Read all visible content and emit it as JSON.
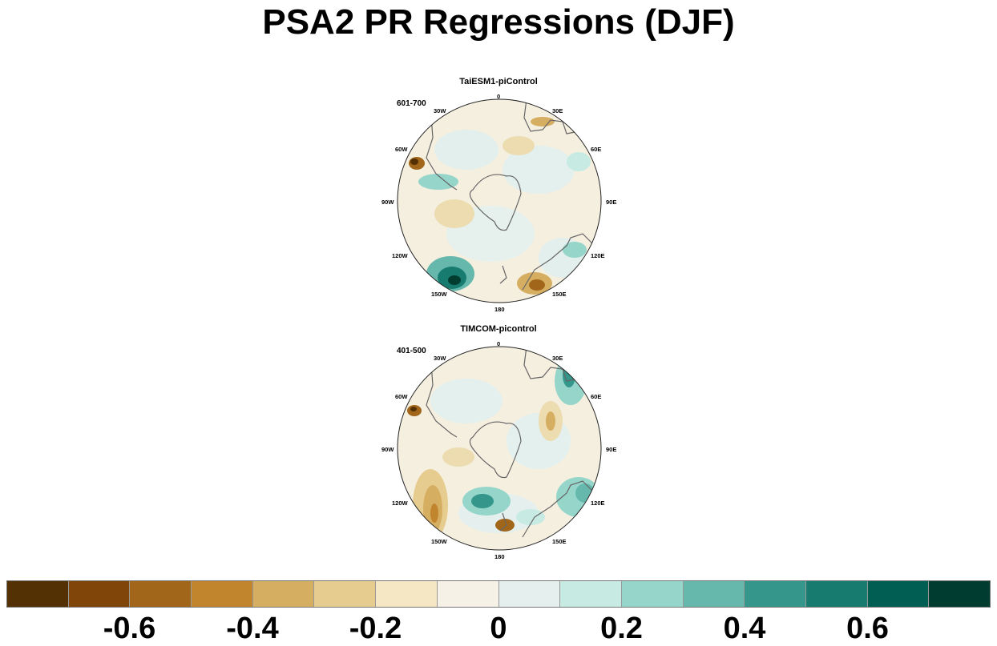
{
  "title": "PSA2 PR Regressions (DJF)",
  "panels": [
    {
      "title": "TaiESM1-piControl",
      "years": "601-700",
      "lon_labels": [
        "0",
        "30E",
        "60E",
        "90E",
        "120E",
        "150E",
        "180",
        "150W",
        "120W",
        "90W",
        "60W",
        "30W"
      ]
    },
    {
      "title": "TIMCOM-picontrol",
      "years": "401-500",
      "lon_labels": [
        "0",
        "30E",
        "60E",
        "90E",
        "120E",
        "150E",
        "180",
        "150W",
        "120W",
        "90W",
        "60W",
        "30W"
      ]
    }
  ],
  "colorbar": {
    "colors": [
      "#543005",
      "#7f4509",
      "#a2661b",
      "#c1852e",
      "#d5ae62",
      "#e6cc8e",
      "#f5e7c3",
      "#f5f1e6",
      "#e5f0ee",
      "#c7eae2",
      "#95d5ca",
      "#67b8ac",
      "#35968c",
      "#177b70",
      "#005e52",
      "#003c30"
    ],
    "labels": [
      "-0.6",
      "-0.4",
      "-0.2",
      "0",
      "0.2",
      "0.4",
      "0.6"
    ],
    "label_values": [
      -0.6,
      -0.4,
      -0.2,
      0,
      0.2,
      0.4,
      0.6
    ],
    "min": -0.8,
    "max": 0.8
  }
}
